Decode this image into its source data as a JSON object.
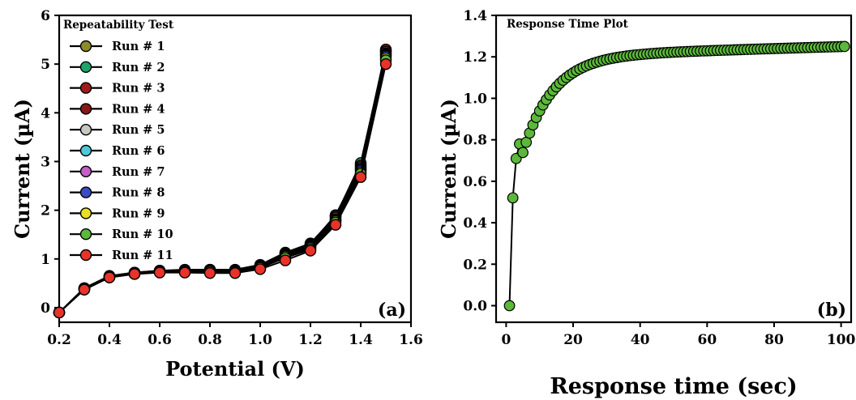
{
  "chart_data": [
    {
      "type": "line",
      "panel_label": "(a)",
      "legend_title": "Repeatability Test",
      "xlabel": "Potential (V)",
      "ylabel": "Current (µA)",
      "xlim": [
        0.2,
        1.6
      ],
      "ylim": [
        -0.3,
        6
      ],
      "xticks": [
        "0.2",
        "0.4",
        "0.6",
        "0.8",
        "1.0",
        "1.2",
        "1.4",
        "1.6"
      ],
      "xtick_values": [
        0.2,
        0.4,
        0.6,
        0.8,
        1.0,
        1.2,
        1.4,
        1.6
      ],
      "yticks": [
        "0",
        "1",
        "2",
        "3",
        "4",
        "5",
        "6"
      ],
      "ytick_values": [
        0,
        1,
        2,
        3,
        4,
        5,
        6
      ],
      "legend_position": "top-left",
      "grid": false,
      "x": [
        0.2,
        0.3,
        0.4,
        0.5,
        0.6,
        0.7,
        0.8,
        0.9,
        1.0,
        1.1,
        1.2,
        1.3,
        1.4,
        1.5
      ],
      "series": [
        {
          "name": "Run # 1",
          "color": "#8b8b2a",
          "values": [
            -0.1,
            0.4,
            0.65,
            0.72,
            0.76,
            0.78,
            0.78,
            0.78,
            0.88,
            1.13,
            1.32,
            1.88,
            2.95,
            5.28
          ]
        },
        {
          "name": "Run # 2",
          "color": "#1aa56a",
          "values": [
            -0.1,
            0.4,
            0.65,
            0.72,
            0.76,
            0.77,
            0.78,
            0.77,
            0.87,
            1.12,
            1.31,
            1.87,
            2.97,
            5.25
          ]
        },
        {
          "name": "Run # 3",
          "color": "#a01c1c",
          "values": [
            -0.1,
            0.4,
            0.65,
            0.72,
            0.75,
            0.77,
            0.77,
            0.77,
            0.86,
            1.12,
            1.3,
            1.9,
            2.9,
            5.3
          ]
        },
        {
          "name": "Run # 4",
          "color": "#8a1616",
          "values": [
            -0.1,
            0.39,
            0.64,
            0.71,
            0.75,
            0.77,
            0.77,
            0.76,
            0.86,
            1.11,
            1.29,
            1.88,
            2.92,
            5.26
          ]
        },
        {
          "name": "Run # 5",
          "color": "#c8c8c0",
          "values": [
            -0.1,
            0.39,
            0.64,
            0.71,
            0.75,
            0.76,
            0.76,
            0.76,
            0.85,
            1.1,
            1.28,
            1.85,
            2.88,
            5.22
          ]
        },
        {
          "name": "Run # 6",
          "color": "#4ec9d6",
          "values": [
            -0.1,
            0.39,
            0.64,
            0.71,
            0.74,
            0.76,
            0.76,
            0.76,
            0.85,
            1.09,
            1.27,
            1.82,
            2.85,
            5.2
          ]
        },
        {
          "name": "Run # 7",
          "color": "#c45ec9",
          "values": [
            -0.1,
            0.38,
            0.63,
            0.7,
            0.74,
            0.75,
            0.75,
            0.75,
            0.84,
            1.08,
            1.26,
            1.8,
            2.83,
            5.18
          ]
        },
        {
          "name": "Run # 8",
          "color": "#3b4bc4",
          "values": [
            -0.1,
            0.38,
            0.63,
            0.7,
            0.74,
            0.75,
            0.75,
            0.75,
            0.84,
            1.07,
            1.25,
            1.8,
            2.82,
            5.16
          ]
        },
        {
          "name": "Run # 9",
          "color": "#e8e020",
          "values": [
            -0.1,
            0.38,
            0.63,
            0.7,
            0.73,
            0.75,
            0.74,
            0.74,
            0.83,
            1.05,
            1.23,
            1.78,
            2.78,
            5.12
          ]
        },
        {
          "name": "Run # 10",
          "color": "#5ab83a",
          "values": [
            -0.1,
            0.37,
            0.62,
            0.69,
            0.73,
            0.74,
            0.74,
            0.73,
            0.82,
            1.02,
            1.2,
            1.75,
            2.75,
            5.08
          ]
        },
        {
          "name": "Run # 11",
          "color": "#e8332a",
          "values": [
            -0.1,
            0.37,
            0.62,
            0.69,
            0.72,
            0.72,
            0.71,
            0.71,
            0.79,
            0.97,
            1.17,
            1.7,
            2.68,
            5.0
          ]
        }
      ]
    },
    {
      "type": "line",
      "panel_label": "(b)",
      "title": "Response Time Plot",
      "xlabel": "Response time (sec)",
      "ylabel": "Current (µA)",
      "xlim": [
        -3,
        103
      ],
      "ylim": [
        -0.08,
        1.4
      ],
      "xticks": [
        "0",
        "20",
        "40",
        "60",
        "80",
        "100"
      ],
      "xtick_values": [
        0,
        20,
        40,
        60,
        80,
        100
      ],
      "yticks": [
        "0.0",
        "0.2",
        "0.4",
        "0.6",
        "0.8",
        "1.0",
        "1.2",
        "1.4"
      ],
      "ytick_values": [
        0.0,
        0.2,
        0.4,
        0.6,
        0.8,
        1.0,
        1.2,
        1.4
      ],
      "grid": false,
      "series": [
        {
          "color": "#5bb83a",
          "x_range": [
            1,
            101
          ],
          "first_values": [
            0.0,
            0.52,
            0.71,
            0.78
          ],
          "y_limit": 1.25
        }
      ]
    }
  ]
}
